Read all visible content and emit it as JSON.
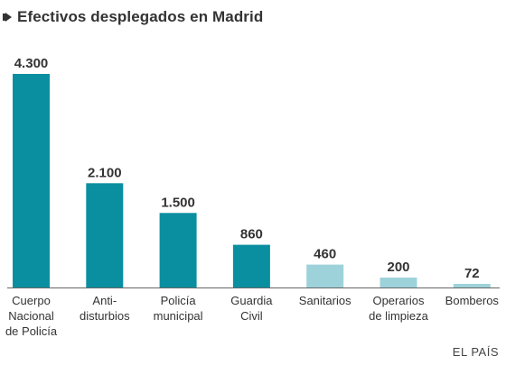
{
  "header": {
    "title": "Efectivos desplegados en Madrid"
  },
  "source": "EL PAÍS",
  "colors": {
    "dark": "#0a8fa0",
    "light": "#9dd2da",
    "axis": "#666666"
  },
  "chart_data": {
    "type": "bar",
    "title": "Efectivos desplegados en Madrid",
    "xlabel": "",
    "ylabel": "",
    "ylim": [
      0,
      4300
    ],
    "grid": false,
    "categories": [
      [
        "Cuerpo",
        "Nacional",
        "de Policía"
      ],
      [
        "Anti-",
        "disturbios"
      ],
      [
        "Policía",
        "municipal"
      ],
      [
        "Guardia",
        "Civil"
      ],
      [
        "Sanitarios"
      ],
      [
        "Operarios",
        "de limpieza"
      ],
      [
        "Bomberos"
      ]
    ],
    "values": [
      4300,
      2100,
      1500,
      860,
      460,
      200,
      72
    ],
    "value_labels": [
      "4.300",
      "2.100",
      "1.500",
      "860",
      "460",
      "200",
      "72"
    ],
    "bar_shades": [
      "dark",
      "dark",
      "dark",
      "dark",
      "light",
      "light",
      "light"
    ]
  }
}
